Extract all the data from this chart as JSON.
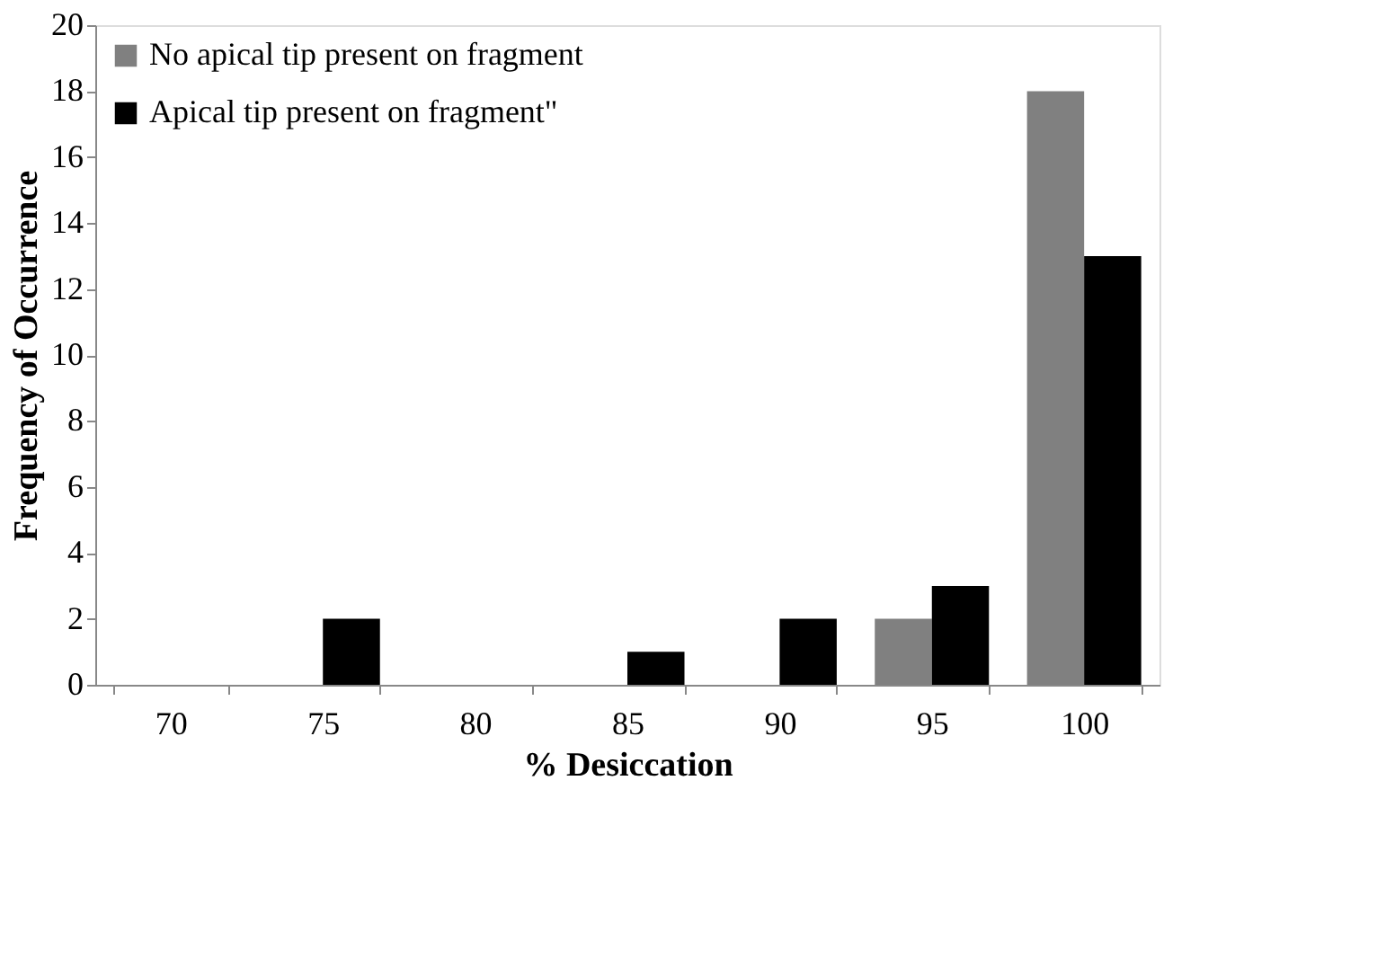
{
  "chart_data": {
    "type": "bar",
    "xlabel": "%  Desiccation",
    "ylabel": "Frequency of Occurrence",
    "categories": [
      "70",
      "75",
      "80",
      "85",
      "90",
      "95",
      "100"
    ],
    "series": [
      {
        "name": "No apical tip present on fragment",
        "color": "#808080",
        "values": [
          0,
          0,
          0,
          0,
          0,
          2,
          18
        ]
      },
      {
        "name": "Apical tip present on fragment\"",
        "color": "#000000",
        "values": [
          0,
          2,
          0,
          1,
          2,
          3,
          13
        ]
      }
    ],
    "ylim": [
      0,
      20
    ],
    "yticks": [
      0,
      2,
      4,
      6,
      8,
      10,
      12,
      14,
      16,
      18,
      20
    ],
    "grid": false,
    "legend": "top left"
  }
}
